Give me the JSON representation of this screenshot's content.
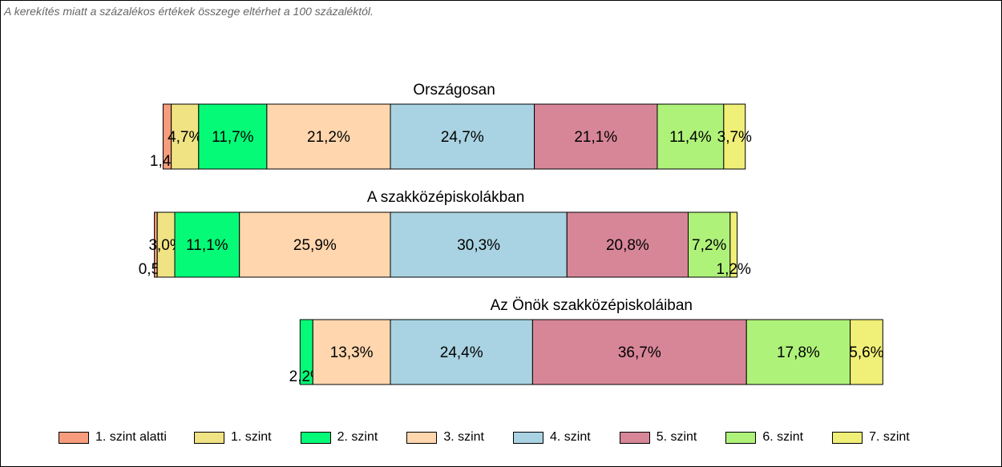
{
  "note": "A kerekítés miatt a  százalékos értékek összege eltérhet a 100 százaléktól.",
  "chart_data": {
    "type": "bar",
    "orientation": "horizontal-stacked-100",
    "categories": [
      "1. szint alatti",
      "1. szint",
      "2. szint",
      "3. szint",
      "4. szint",
      "5. szint",
      "6. szint",
      "7. szint"
    ],
    "colors": [
      "#F79C7C",
      "#EFE384",
      "#05FB77",
      "#FFD6AE",
      "#A9D3E2",
      "#D78698",
      "#AFF27A",
      "#F0EF77"
    ],
    "legend_position": "bottom",
    "bars": [
      {
        "title": "Országosan",
        "values": [
          1.4,
          4.7,
          11.7,
          21.2,
          24.7,
          21.1,
          11.4,
          3.7
        ],
        "labels": [
          "1,4%",
          "4,7%",
          "11,7%",
          "21,2%",
          "24,7%",
          "21,1%",
          "11,4%",
          "3,7%"
        ]
      },
      {
        "title": "A szakközépiskolákban",
        "values": [
          0.5,
          3.0,
          11.1,
          25.9,
          30.3,
          20.8,
          7.2,
          1.2
        ],
        "labels": [
          "0,5%",
          "3,0%",
          "11,1%",
          "25,9%",
          "30,3%",
          "20,8%",
          "7,2%",
          "1,2%"
        ]
      },
      {
        "title": "Az Önök szakközépiskoláiban",
        "values": [
          0,
          0,
          2.2,
          13.3,
          24.4,
          36.7,
          17.8,
          5.6
        ],
        "labels": [
          "",
          "",
          "2,2%",
          "13,3%",
          "24,4%",
          "36,7%",
          "17,8%",
          "5,6%"
        ]
      }
    ]
  }
}
